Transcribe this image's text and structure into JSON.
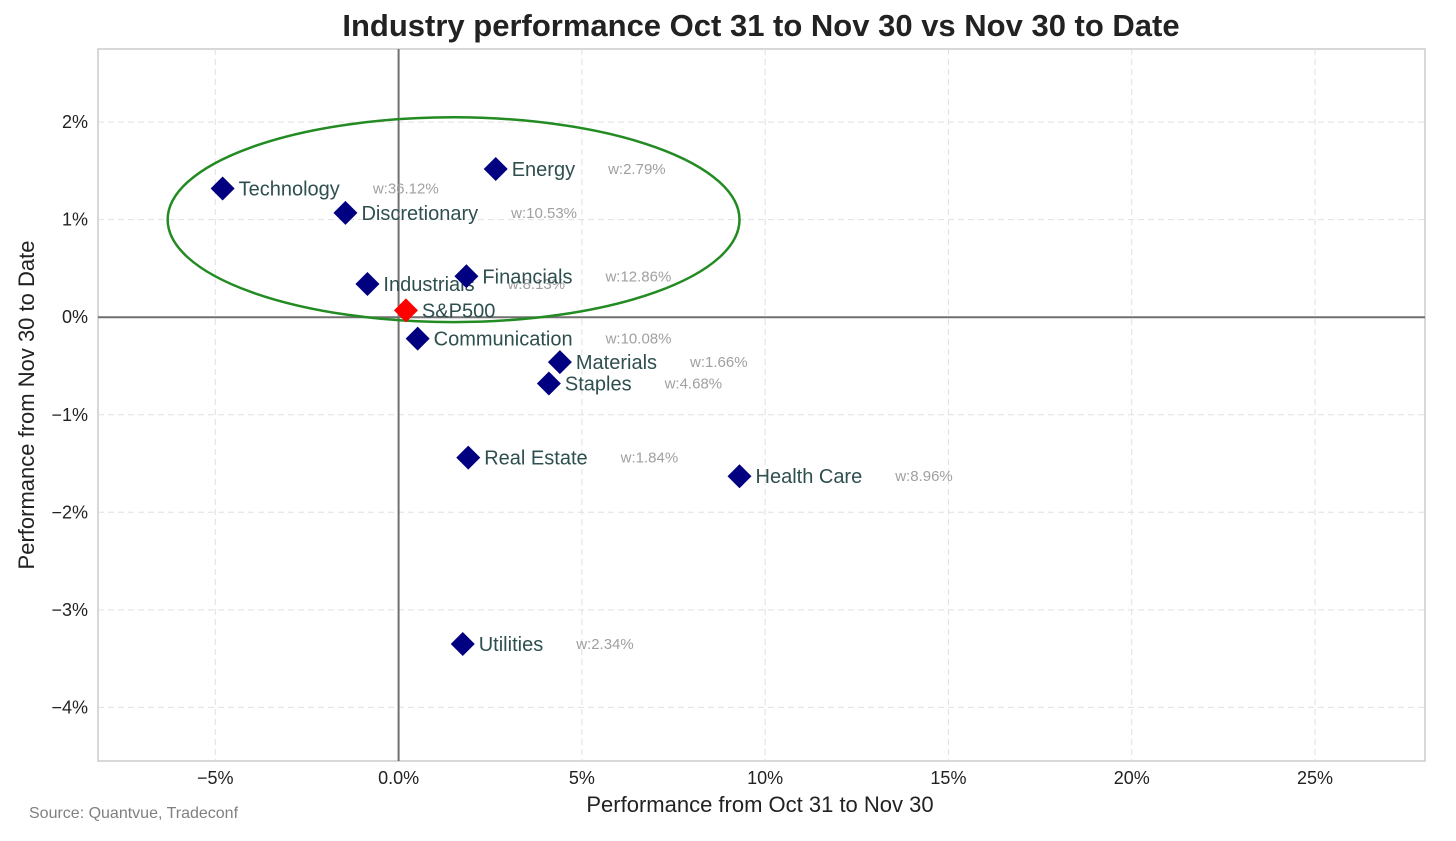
{
  "chart_data": {
    "type": "scatter",
    "title": "Industry performance Oct 31 to Nov 30 vs Nov 30 to Date",
    "xlabel": "Performance from Oct 31 to Nov 30",
    "ylabel": "Performance from Nov 30 to Date",
    "xlim": [
      -8.2,
      28.0
    ],
    "ylim": [
      -4.55,
      2.75
    ],
    "x_ticks": [
      -5,
      0,
      5,
      10,
      15,
      20,
      25
    ],
    "x_tick_labels": [
      "−5%",
      "0.0%",
      "5%",
      "10%",
      "15%",
      "20%",
      "25%"
    ],
    "y_ticks": [
      2,
      1,
      0,
      -1,
      -2,
      -3,
      -4
    ],
    "y_tick_labels": [
      "2%",
      "1%",
      "0%",
      "−1%",
      "−2%",
      "−3%",
      "−4%"
    ],
    "grid": true,
    "source": "Source: Quantvue, Tradeconf",
    "colors": {
      "sector": "#000080",
      "benchmark": "#ff0000",
      "ellipse": "#228b22",
      "zero_line": "#707070"
    },
    "highlight_ellipse": {
      "cx": 1.5,
      "cy": 1.0,
      "rx": 7.8,
      "ry": 1.05
    },
    "points": [
      {
        "name": "Technology",
        "x": -4.8,
        "y": 1.32,
        "weight": "w:36.12%",
        "highlight": false
      },
      {
        "name": "Discretionary",
        "x": -1.45,
        "y": 1.07,
        "weight": "w:10.53%",
        "highlight": false
      },
      {
        "name": "Energy",
        "x": 2.65,
        "y": 1.52,
        "weight": "w:2.79%",
        "highlight": false
      },
      {
        "name": "Industrials",
        "x": -0.85,
        "y": 0.34,
        "weight": "w:8.13%",
        "highlight": false
      },
      {
        "name": "Financials",
        "x": 1.85,
        "y": 0.42,
        "weight": "w:12.86%",
        "highlight": false
      },
      {
        "name": "S&P500",
        "x": 0.2,
        "y": 0.07,
        "weight": "",
        "highlight": true
      },
      {
        "name": "Communication",
        "x": 0.52,
        "y": -0.22,
        "weight": "w:10.08%",
        "highlight": false
      },
      {
        "name": "Materials",
        "x": 4.4,
        "y": -0.46,
        "weight": "w:1.66%",
        "highlight": false
      },
      {
        "name": "Staples",
        "x": 4.1,
        "y": -0.68,
        "weight": "w:4.68%",
        "highlight": false
      },
      {
        "name": "Real Estate",
        "x": 1.9,
        "y": -1.44,
        "weight": "w:1.84%",
        "highlight": false
      },
      {
        "name": "Health Care",
        "x": 9.3,
        "y": -1.63,
        "weight": "w:8.96%",
        "highlight": false
      },
      {
        "name": "Utilities",
        "x": 1.75,
        "y": -3.35,
        "weight": "w:2.34%",
        "highlight": false
      }
    ]
  }
}
